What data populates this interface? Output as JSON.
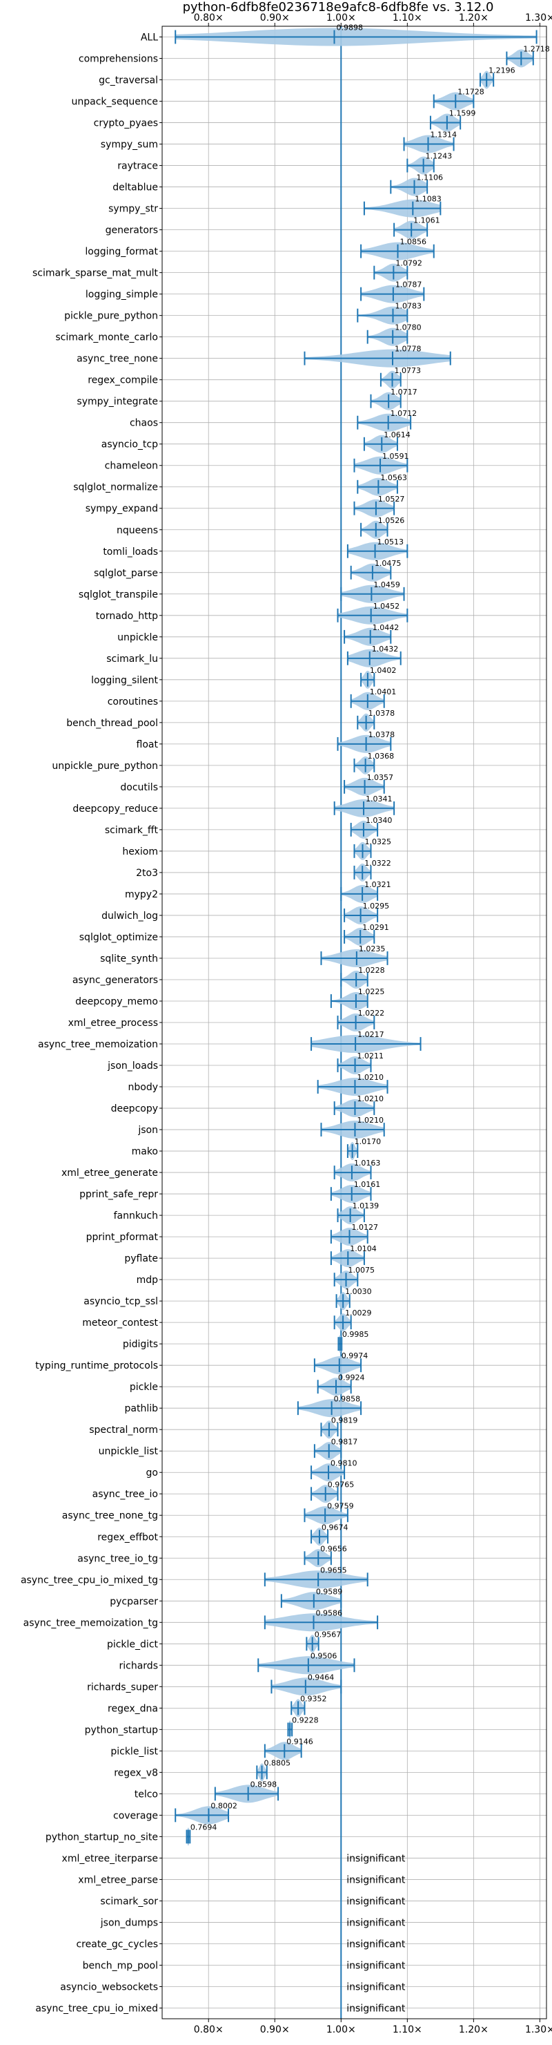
{
  "chart_data": {
    "type": "violin",
    "title": "python-6dfb8fe0236718e9afc8-6dfb8fe vs. 3.12.0",
    "xlim": [
      0.73,
      1.31
    ],
    "x_ticks": [
      0.8,
      0.9,
      1.0,
      1.1,
      1.2,
      1.3
    ],
    "x_tick_labels": [
      "0.80×",
      "0.90×",
      "1.00×",
      "1.10×",
      "1.20×",
      "1.30×"
    ],
    "reference_line": 1.0,
    "grid": true,
    "colors": {
      "violin": "#aacbe6",
      "whisker": "#1f77b4",
      "reference": "#1f77b4",
      "grid": "#b0b0b0"
    },
    "insignificant_label": "insignificant",
    "benchmarks": [
      {
        "name": "ALL",
        "label": "0.9898",
        "value": 0.9898,
        "lo": 0.75,
        "hi": 1.295
      },
      {
        "name": "comprehensions",
        "label": "1.2718",
        "value": 1.2718,
        "lo": 1.25,
        "hi": 1.29
      },
      {
        "name": "gc_traversal",
        "label": "1.2196",
        "value": 1.2196,
        "lo": 1.21,
        "hi": 1.23
      },
      {
        "name": "unpack_sequence",
        "label": "1.1728",
        "value": 1.1728,
        "lo": 1.14,
        "hi": 1.2
      },
      {
        "name": "crypto_pyaes",
        "label": "1.1599",
        "value": 1.1599,
        "lo": 1.135,
        "hi": 1.18
      },
      {
        "name": "sympy_sum",
        "label": "1.1314",
        "value": 1.1314,
        "lo": 1.095,
        "hi": 1.17
      },
      {
        "name": "raytrace",
        "label": "1.1243",
        "value": 1.1243,
        "lo": 1.1,
        "hi": 1.14
      },
      {
        "name": "deltablue",
        "label": "1.1106",
        "value": 1.1106,
        "lo": 1.075,
        "hi": 1.13
      },
      {
        "name": "sympy_str",
        "label": "1.1083",
        "value": 1.1083,
        "lo": 1.035,
        "hi": 1.15
      },
      {
        "name": "generators",
        "label": "1.1061",
        "value": 1.1061,
        "lo": 1.08,
        "hi": 1.13
      },
      {
        "name": "logging_format",
        "label": "1.0856",
        "value": 1.0856,
        "lo": 1.03,
        "hi": 1.14
      },
      {
        "name": "scimark_sparse_mat_mult",
        "label": "1.0792",
        "value": 1.0792,
        "lo": 1.05,
        "hi": 1.1
      },
      {
        "name": "logging_simple",
        "label": "1.0787",
        "value": 1.0787,
        "lo": 1.03,
        "hi": 1.125
      },
      {
        "name": "pickle_pure_python",
        "label": "1.0783",
        "value": 1.0783,
        "lo": 1.025,
        "hi": 1.1
      },
      {
        "name": "scimark_monte_carlo",
        "label": "1.0780",
        "value": 1.078,
        "lo": 1.04,
        "hi": 1.1
      },
      {
        "name": "async_tree_none",
        "label": "1.0778",
        "value": 1.0778,
        "lo": 0.945,
        "hi": 1.165
      },
      {
        "name": "regex_compile",
        "label": "1.0773",
        "value": 1.0773,
        "lo": 1.06,
        "hi": 1.09
      },
      {
        "name": "sympy_integrate",
        "label": "1.0717",
        "value": 1.0717,
        "lo": 1.045,
        "hi": 1.09
      },
      {
        "name": "chaos",
        "label": "1.0712",
        "value": 1.0712,
        "lo": 1.025,
        "hi": 1.105
      },
      {
        "name": "asyncio_tcp",
        "label": "1.0614",
        "value": 1.0614,
        "lo": 1.035,
        "hi": 1.085
      },
      {
        "name": "chameleon",
        "label": "1.0591",
        "value": 1.0591,
        "lo": 1.02,
        "hi": 1.1
      },
      {
        "name": "sqlglot_normalize",
        "label": "1.0563",
        "value": 1.0563,
        "lo": 1.025,
        "hi": 1.085
      },
      {
        "name": "sympy_expand",
        "label": "1.0527",
        "value": 1.0527,
        "lo": 1.02,
        "hi": 1.08
      },
      {
        "name": "nqueens",
        "label": "1.0526",
        "value": 1.0526,
        "lo": 1.03,
        "hi": 1.07
      },
      {
        "name": "tomli_loads",
        "label": "1.0513",
        "value": 1.0513,
        "lo": 1.01,
        "hi": 1.1
      },
      {
        "name": "sqlglot_parse",
        "label": "1.0475",
        "value": 1.0475,
        "lo": 1.015,
        "hi": 1.075
      },
      {
        "name": "sqlglot_transpile",
        "label": "1.0459",
        "value": 1.0459,
        "lo": 1.0,
        "hi": 1.095
      },
      {
        "name": "tornado_http",
        "label": "1.0452",
        "value": 1.0452,
        "lo": 0.995,
        "hi": 1.1
      },
      {
        "name": "unpickle",
        "label": "1.0442",
        "value": 1.0442,
        "lo": 1.005,
        "hi": 1.075
      },
      {
        "name": "scimark_lu",
        "label": "1.0432",
        "value": 1.0432,
        "lo": 1.01,
        "hi": 1.09
      },
      {
        "name": "logging_silent",
        "label": "1.0402",
        "value": 1.0402,
        "lo": 1.03,
        "hi": 1.05
      },
      {
        "name": "coroutines",
        "label": "1.0401",
        "value": 1.0401,
        "lo": 1.015,
        "hi": 1.065
      },
      {
        "name": "bench_thread_pool",
        "label": "1.0378",
        "value": 1.0378,
        "lo": 1.025,
        "hi": 1.05
      },
      {
        "name": "float",
        "label": "1.0378",
        "value": 1.0378,
        "lo": 0.995,
        "hi": 1.075
      },
      {
        "name": "unpickle_pure_python",
        "label": "1.0368",
        "value": 1.0368,
        "lo": 1.02,
        "hi": 1.05
      },
      {
        "name": "docutils",
        "label": "1.0357",
        "value": 1.0357,
        "lo": 1.005,
        "hi": 1.065
      },
      {
        "name": "deepcopy_reduce",
        "label": "1.0341",
        "value": 1.0341,
        "lo": 0.99,
        "hi": 1.08
      },
      {
        "name": "scimark_fft",
        "label": "1.0340",
        "value": 1.034,
        "lo": 1.015,
        "hi": 1.055
      },
      {
        "name": "hexiom",
        "label": "1.0325",
        "value": 1.0325,
        "lo": 1.02,
        "hi": 1.045
      },
      {
        "name": "2to3",
        "label": "1.0322",
        "value": 1.0322,
        "lo": 1.02,
        "hi": 1.045
      },
      {
        "name": "mypy2",
        "label": "1.0321",
        "value": 1.0321,
        "lo": 1.0,
        "hi": 1.055
      },
      {
        "name": "dulwich_log",
        "label": "1.0295",
        "value": 1.0295,
        "lo": 1.005,
        "hi": 1.055
      },
      {
        "name": "sqlglot_optimize",
        "label": "1.0291",
        "value": 1.0291,
        "lo": 1.005,
        "hi": 1.05
      },
      {
        "name": "sqlite_synth",
        "label": "1.0235",
        "value": 1.0235,
        "lo": 0.97,
        "hi": 1.07
      },
      {
        "name": "async_generators",
        "label": "1.0228",
        "value": 1.0228,
        "lo": 1.0,
        "hi": 1.04
      },
      {
        "name": "deepcopy_memo",
        "label": "1.0225",
        "value": 1.0225,
        "lo": 0.985,
        "hi": 1.04
      },
      {
        "name": "xml_etree_process",
        "label": "1.0222",
        "value": 1.0222,
        "lo": 0.995,
        "hi": 1.05
      },
      {
        "name": "async_tree_memoization",
        "label": "1.0217",
        "value": 1.0217,
        "lo": 0.955,
        "hi": 1.12
      },
      {
        "name": "json_loads",
        "label": "1.0211",
        "value": 1.0211,
        "lo": 0.995,
        "hi": 1.045
      },
      {
        "name": "nbody",
        "label": "1.0210",
        "value": 1.021,
        "lo": 0.965,
        "hi": 1.07
      },
      {
        "name": "deepcopy",
        "label": "1.0210",
        "value": 1.021,
        "lo": 0.99,
        "hi": 1.05
      },
      {
        "name": "json",
        "label": "1.0210",
        "value": 1.021,
        "lo": 0.97,
        "hi": 1.065
      },
      {
        "name": "mako",
        "label": "1.0170",
        "value": 1.017,
        "lo": 1.01,
        "hi": 1.025
      },
      {
        "name": "xml_etree_generate",
        "label": "1.0163",
        "value": 1.0163,
        "lo": 0.99,
        "hi": 1.045
      },
      {
        "name": "pprint_safe_repr",
        "label": "1.0161",
        "value": 1.0161,
        "lo": 0.985,
        "hi": 1.045
      },
      {
        "name": "fannkuch",
        "label": "1.0139",
        "value": 1.0139,
        "lo": 0.995,
        "hi": 1.035
      },
      {
        "name": "pprint_pformat",
        "label": "1.0127",
        "value": 1.0127,
        "lo": 0.985,
        "hi": 1.04
      },
      {
        "name": "pyflate",
        "label": "1.0104",
        "value": 1.0104,
        "lo": 0.985,
        "hi": 1.035
      },
      {
        "name": "mdp",
        "label": "1.0075",
        "value": 1.0075,
        "lo": 0.99,
        "hi": 1.025
      },
      {
        "name": "asyncio_tcp_ssl",
        "label": "1.0030",
        "value": 1.003,
        "lo": 0.993,
        "hi": 1.013
      },
      {
        "name": "meteor_contest",
        "label": "1.0029",
        "value": 1.0029,
        "lo": 0.99,
        "hi": 1.015
      },
      {
        "name": "pidigits",
        "label": "0.9985",
        "value": 0.9985,
        "lo": 0.996,
        "hi": 1.001
      },
      {
        "name": "typing_runtime_protocols",
        "label": "0.9974",
        "value": 0.9974,
        "lo": 0.96,
        "hi": 1.03
      },
      {
        "name": "pickle",
        "label": "0.9924",
        "value": 0.9924,
        "lo": 0.965,
        "hi": 1.015
      },
      {
        "name": "pathlib",
        "label": "0.9858",
        "value": 0.9858,
        "lo": 0.935,
        "hi": 1.03
      },
      {
        "name": "spectral_norm",
        "label": "0.9819",
        "value": 0.9819,
        "lo": 0.97,
        "hi": 0.995
      },
      {
        "name": "unpickle_list",
        "label": "0.9817",
        "value": 0.9817,
        "lo": 0.96,
        "hi": 1.0
      },
      {
        "name": "go",
        "label": "0.9810",
        "value": 0.981,
        "lo": 0.955,
        "hi": 1.005
      },
      {
        "name": "async_tree_io",
        "label": "0.9765",
        "value": 0.9765,
        "lo": 0.955,
        "hi": 0.995
      },
      {
        "name": "async_tree_none_tg",
        "label": "0.9759",
        "value": 0.9759,
        "lo": 0.945,
        "hi": 1.01
      },
      {
        "name": "regex_effbot",
        "label": "0.9674",
        "value": 0.9674,
        "lo": 0.955,
        "hi": 0.98
      },
      {
        "name": "async_tree_io_tg",
        "label": "0.9656",
        "value": 0.9656,
        "lo": 0.945,
        "hi": 0.985
      },
      {
        "name": "async_tree_cpu_io_mixed_tg",
        "label": "0.9655",
        "value": 0.9655,
        "lo": 0.885,
        "hi": 1.04
      },
      {
        "name": "pycparser",
        "label": "0.9589",
        "value": 0.9589,
        "lo": 0.91,
        "hi": 1.0
      },
      {
        "name": "async_tree_memoization_tg",
        "label": "0.9586",
        "value": 0.9586,
        "lo": 0.885,
        "hi": 1.055
      },
      {
        "name": "pickle_dict",
        "label": "0.9567",
        "value": 0.9567,
        "lo": 0.948,
        "hi": 0.966
      },
      {
        "name": "richards",
        "label": "0.9506",
        "value": 0.9506,
        "lo": 0.875,
        "hi": 1.02
      },
      {
        "name": "richards_super",
        "label": "0.9464",
        "value": 0.9464,
        "lo": 0.895,
        "hi": 1.0
      },
      {
        "name": "regex_dna",
        "label": "0.9352",
        "value": 0.9352,
        "lo": 0.925,
        "hi": 0.945
      },
      {
        "name": "python_startup",
        "label": "0.9228",
        "value": 0.9228,
        "lo": 0.92,
        "hi": 0.926
      },
      {
        "name": "pickle_list",
        "label": "0.9146",
        "value": 0.9146,
        "lo": 0.885,
        "hi": 0.94
      },
      {
        "name": "regex_v8",
        "label": "0.8805",
        "value": 0.8805,
        "lo": 0.873,
        "hi": 0.888
      },
      {
        "name": "telco",
        "label": "0.8598",
        "value": 0.8598,
        "lo": 0.81,
        "hi": 0.905
      },
      {
        "name": "coverage",
        "label": "0.8002",
        "value": 0.8002,
        "lo": 0.75,
        "hi": 0.83
      },
      {
        "name": "python_startup_no_site",
        "label": "0.7694",
        "value": 0.7694,
        "lo": 0.767,
        "hi": 0.772
      },
      {
        "name": "xml_etree_iterparse",
        "insignificant": true
      },
      {
        "name": "xml_etree_parse",
        "insignificant": true
      },
      {
        "name": "scimark_sor",
        "insignificant": true
      },
      {
        "name": "json_dumps",
        "insignificant": true
      },
      {
        "name": "create_gc_cycles",
        "insignificant": true
      },
      {
        "name": "bench_mp_pool",
        "insignificant": true
      },
      {
        "name": "asyncio_websockets",
        "insignificant": true
      },
      {
        "name": "async_tree_cpu_io_mixed",
        "insignificant": true
      }
    ]
  }
}
